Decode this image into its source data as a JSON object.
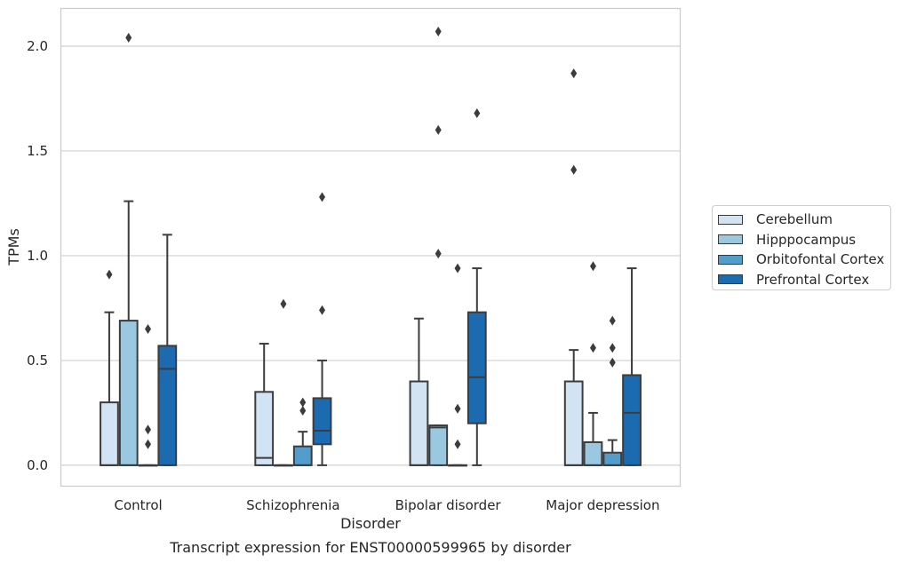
{
  "chart_data": {
    "type": "box",
    "caption": "Transcript expression for ENST00000599965 by disorder",
    "xlabel": "Disorder",
    "ylabel": "TPMs",
    "ylim": [
      -0.1,
      2.18
    ],
    "yticks": [
      "0.0",
      "0.5",
      "1.0",
      "1.5",
      "2.0"
    ],
    "grid": "horizontal",
    "legend_position": "right",
    "categories": [
      "Control",
      "Schizophrenia",
      "Bipolar disorder",
      "Major depression"
    ],
    "series": [
      {
        "name": "Cerebellum",
        "color": "#d2e3f3",
        "boxes": [
          {
            "q1": 0.0,
            "median": 0.0,
            "q3": 0.3,
            "whislo": 0.0,
            "whishi": 0.73,
            "fliers": [
              0.91
            ]
          },
          {
            "q1": 0.0,
            "median": 0.035,
            "q3": 0.35,
            "whislo": 0.0,
            "whishi": 0.58,
            "fliers": []
          },
          {
            "q1": 0.0,
            "median": 0.0,
            "q3": 0.4,
            "whislo": 0.0,
            "whishi": 0.7,
            "fliers": []
          },
          {
            "q1": 0.0,
            "median": 0.0,
            "q3": 0.4,
            "whislo": 0.0,
            "whishi": 0.55,
            "fliers": [
              1.41,
              1.87
            ]
          }
        ]
      },
      {
        "name": "Hipppocampus",
        "color": "#9ac8e0",
        "boxes": [
          {
            "q1": 0.0,
            "median": 0.0,
            "q3": 0.69,
            "whislo": 0.0,
            "whishi": 1.26,
            "fliers": [
              2.04
            ]
          },
          {
            "q1": 0.0,
            "median": 0.0,
            "q3": 0.0,
            "whislo": 0.0,
            "whishi": 0.0,
            "fliers": [
              0.77
            ]
          },
          {
            "q1": 0.0,
            "median": 0.18,
            "q3": 0.19,
            "whislo": 0.0,
            "whishi": 0.19,
            "fliers": [
              1.01,
              1.6,
              2.07
            ]
          },
          {
            "q1": 0.0,
            "median": 0.0,
            "q3": 0.11,
            "whislo": 0.0,
            "whishi": 0.25,
            "fliers": [
              0.56,
              0.95
            ]
          }
        ]
      },
      {
        "name": "Orbitofontal Cortex",
        "color": "#529dcc",
        "boxes": [
          {
            "q1": 0.0,
            "median": 0.0,
            "q3": 0.0,
            "whislo": 0.0,
            "whishi": 0.0,
            "fliers": [
              0.1,
              0.17,
              0.65
            ]
          },
          {
            "q1": 0.0,
            "median": 0.0,
            "q3": 0.09,
            "whislo": 0.0,
            "whishi": 0.16,
            "fliers": [
              0.26,
              0.3
            ]
          },
          {
            "q1": 0.0,
            "median": 0.0,
            "q3": 0.0,
            "whislo": 0.0,
            "whishi": 0.0,
            "fliers": [
              0.1,
              0.27,
              0.94
            ]
          },
          {
            "q1": 0.0,
            "median": 0.0,
            "q3": 0.06,
            "whislo": 0.0,
            "whishi": 0.12,
            "fliers": [
              0.49,
              0.56,
              0.69
            ]
          }
        ]
      },
      {
        "name": "Prefrontal Cortex",
        "color": "#1c6aaf",
        "boxes": [
          {
            "q1": 0.0,
            "median": 0.46,
            "q3": 0.57,
            "whislo": 0.0,
            "whishi": 1.1,
            "fliers": []
          },
          {
            "q1": 0.1,
            "median": 0.165,
            "q3": 0.32,
            "whislo": 0.0,
            "whishi": 0.5,
            "fliers": [
              0.74,
              1.28
            ]
          },
          {
            "q1": 0.2,
            "median": 0.42,
            "q3": 0.73,
            "whislo": 0.0,
            "whishi": 0.94,
            "fliers": [
              1.68
            ]
          },
          {
            "q1": 0.0,
            "median": 0.25,
            "q3": 0.43,
            "whislo": 0.0,
            "whishi": 0.94,
            "fliers": []
          }
        ]
      }
    ]
  }
}
